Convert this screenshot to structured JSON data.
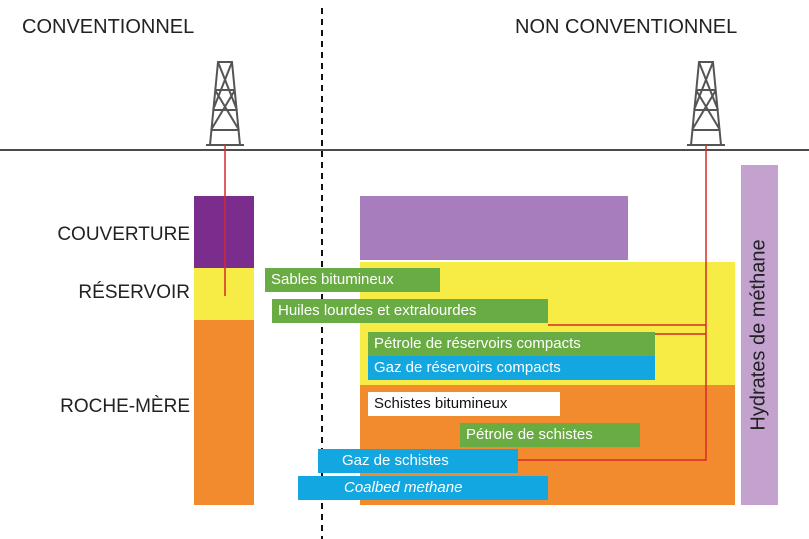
{
  "headers": {
    "left": "CONVENTIONNEL",
    "right": "NON CONVENTIONNEL"
  },
  "layers": [
    "COUVERTURE",
    "RÉSERVOIR",
    "ROCHE-MÈRE"
  ],
  "resources": [
    "Sables bitumineux",
    "Huiles lourdes et extralourdes",
    "Pétrole de réservoirs compacts",
    "Gaz de réservoirs compacts",
    "Schistes bitumineux",
    "Pétrole de schistes",
    "Gaz de schistes",
    "Coalbed methane"
  ],
  "hydrates": "Hydrates de méthane"
}
